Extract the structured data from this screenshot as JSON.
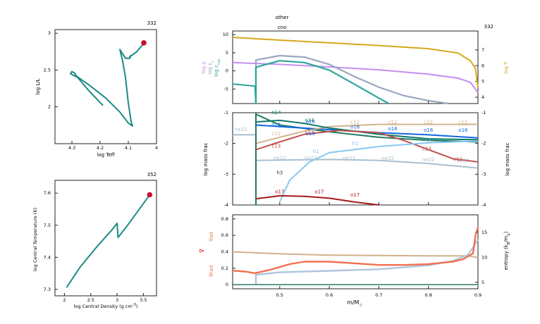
{
  "colors": {
    "track": "#1a8a86",
    "marker": "#c8102e",
    "logRho": "#c58ef0",
    "logSnu": "#9aa7bf",
    "logEpsNuc": "#2ba79b",
    "logT": "#d7a81a",
    "he4": "#1e7a62",
    "o16": "#1467e0",
    "c12": "#d2b48c",
    "ne22": "#a9bfd0",
    "n14": "#0e7a6a",
    "c13": "#c0504d",
    "h1": "#86c9ef",
    "o17": "#a51919",
    "gradAd": "#d1b08a",
    "gradRad": "#f07050",
    "entropy": "#b0c4de"
  },
  "hr": {
    "model": "332",
    "xlabel": "log Teff",
    "ylabel": "log L/L",
    "xticks": [
      "4.3",
      "4.2",
      "4.1",
      "4"
    ],
    "yticks": [
      "3",
      "2.5",
      "2"
    ],
    "xlim": [
      4.36,
      4.0
    ],
    "ylim": [
      1.5,
      3.05
    ],
    "track": [
      [
        4.19,
        2.02
      ],
      [
        4.24,
        2.22
      ],
      [
        4.28,
        2.4
      ],
      [
        4.305,
        2.45
      ],
      [
        4.3,
        2.48
      ],
      [
        4.29,
        2.46
      ],
      [
        4.285,
        2.42
      ],
      [
        4.24,
        2.3
      ],
      [
        4.18,
        2.12
      ],
      [
        4.13,
        1.93
      ],
      [
        4.1,
        1.78
      ],
      [
        4.085,
        1.74
      ],
      [
        4.09,
        1.8
      ],
      [
        4.1,
        2.05
      ],
      [
        4.11,
        2.4
      ],
      [
        4.12,
        2.62
      ],
      [
        4.13,
        2.78
      ],
      [
        4.11,
        2.66
      ],
      [
        4.095,
        2.66
      ],
      [
        4.09,
        2.7
      ],
      [
        4.095,
        2.68
      ],
      [
        4.07,
        2.75
      ],
      [
        4.05,
        2.84
      ],
      [
        4.045,
        2.87
      ]
    ],
    "point": [
      4.045,
      2.87
    ]
  },
  "rho": {
    "model": "352",
    "xlabel": "log Central Density (g cm",
    "ylabel": "log Central Temperature (K)",
    "xticks": [
      "2",
      "2.5",
      "3",
      "3.5"
    ],
    "yticks": [
      "7.6",
      "7.5",
      "7.4",
      "7.3"
    ],
    "xlim": [
      1.82,
      3.75
    ],
    "ylim": [
      7.28,
      7.64
    ],
    "track": [
      [
        2.04,
        7.306
      ],
      [
        2.3,
        7.37
      ],
      [
        2.6,
        7.43
      ],
      [
        2.9,
        7.485
      ],
      [
        3.0,
        7.506
      ],
      [
        3.02,
        7.462
      ],
      [
        3.2,
        7.5
      ],
      [
        3.4,
        7.545
      ],
      [
        3.6,
        7.59
      ],
      [
        3.62,
        7.595
      ]
    ],
    "point": [
      3.62,
      7.595
    ]
  },
  "profile": {
    "model": "332",
    "top_labels": [
      "other",
      "cno"
    ],
    "xlabel": "m/M",
    "xticks": [
      "0.5",
      "0.6",
      "0.7",
      "0.8",
      "0.9"
    ],
    "xlim": [
      0.405,
      0.9
    ],
    "panel1": {
      "ylim": [
        -9,
        11
      ],
      "yticks": [
        "10",
        "5",
        "0",
        "-5"
      ],
      "y2lim": [
        3.6,
        8.2
      ],
      "y2ticks": [
        "7",
        "6",
        "5",
        "4"
      ],
      "ylabels": [
        "log ρ",
        "log ε",
        "log ε"
      ],
      "y2label": "log T",
      "series": {
        "logT": [
          [
            0.405,
            7.8
          ],
          [
            0.5,
            7.62
          ],
          [
            0.6,
            7.45
          ],
          [
            0.7,
            7.28
          ],
          [
            0.8,
            7.08
          ],
          [
            0.86,
            6.8
          ],
          [
            0.885,
            6.3
          ],
          [
            0.895,
            5.8
          ],
          [
            0.9,
            4.6
          ]
        ],
        "logRho": [
          [
            0.405,
            2.3
          ],
          [
            0.5,
            1.8
          ],
          [
            0.6,
            1.1
          ],
          [
            0.7,
            0.3
          ],
          [
            0.8,
            -0.9
          ],
          [
            0.86,
            -2.0
          ],
          [
            0.885,
            -3.2
          ],
          [
            0.9,
            -6.0
          ]
        ],
        "logSnu": [
          [
            0.452,
            -9
          ],
          [
            0.452,
            3.0
          ],
          [
            0.5,
            4.2
          ],
          [
            0.55,
            3.8
          ],
          [
            0.6,
            1.8
          ],
          [
            0.65,
            -1.5
          ],
          [
            0.7,
            -4.5
          ],
          [
            0.75,
            -6.8
          ],
          [
            0.8,
            -8.2
          ],
          [
            0.84,
            -9
          ]
        ],
        "logEpsNuc_left": [
          [
            0.405,
            -3.6
          ],
          [
            0.45,
            -4.2
          ],
          [
            0.452,
            -9
          ]
        ],
        "logEpsNuc": [
          [
            0.452,
            -9
          ],
          [
            0.452,
            1.0
          ],
          [
            0.5,
            2.8
          ],
          [
            0.55,
            2.3
          ],
          [
            0.6,
            0.2
          ],
          [
            0.65,
            -3.6
          ],
          [
            0.7,
            -7.5
          ],
          [
            0.72,
            -9
          ]
        ]
      }
    },
    "panel2": {
      "ylim": [
        -4,
        -1
      ],
      "yticks": [
        "-1",
        "-2",
        "-3",
        "-4"
      ],
      "ylabel": "log mass frac",
      "series": [
        {
          "name": "he4",
          "pts": [
            [
              0.452,
              -1.05
            ],
            [
              0.5,
              -1.4
            ],
            [
              0.6,
              -1.62
            ],
            [
              0.7,
              -1.8
            ],
            [
              0.8,
              -1.9
            ],
            [
              0.9,
              -1.95
            ]
          ]
        },
        {
          "name": "o16",
          "pts": [
            [
              0.452,
              -1.0
            ],
            [
              0.452,
              -1.4
            ],
            [
              0.5,
              -1.45
            ],
            [
              0.6,
              -1.55
            ],
            [
              0.7,
              -1.65
            ],
            [
              0.8,
              -1.72
            ],
            [
              0.9,
              -1.82
            ]
          ]
        },
        {
          "name": "c12",
          "pts": [
            [
              0.452,
              -2.0
            ],
            [
              0.5,
              -1.8
            ],
            [
              0.55,
              -1.6
            ],
            [
              0.6,
              -1.45
            ],
            [
              0.7,
              -1.38
            ],
            [
              0.8,
              -1.38
            ],
            [
              0.9,
              -1.38
            ]
          ]
        },
        {
          "name": "n14",
          "pts": [
            [
              0.452,
              -1.3
            ],
            [
              0.5,
              -1.25
            ],
            [
              0.55,
              -1.35
            ],
            [
              0.6,
              -1.5
            ],
            [
              0.7,
              -1.7
            ],
            [
              0.8,
              -1.85
            ],
            [
              0.9,
              -1.88
            ]
          ]
        },
        {
          "name": "c13",
          "pts": [
            [
              0.452,
              -2.2
            ],
            [
              0.5,
              -1.95
            ],
            [
              0.55,
              -1.7
            ],
            [
              0.62,
              -1.58
            ],
            [
              0.7,
              -1.65
            ],
            [
              0.75,
              -1.9
            ],
            [
              0.8,
              -2.2
            ],
            [
              0.85,
              -2.5
            ],
            [
              0.9,
              -2.6
            ]
          ]
        },
        {
          "name": "ne22",
          "pts": [
            [
              0.405,
              -1.72
            ],
            [
              0.452,
              -1.72
            ],
            [
              0.452,
              -2.55
            ],
            [
              0.6,
              -2.52
            ],
            [
              0.7,
              -2.55
            ],
            [
              0.8,
              -2.65
            ],
            [
              0.9,
              -2.8
            ]
          ]
        },
        {
          "name": "h1",
          "pts": [
            [
              0.5,
              -3.9
            ],
            [
              0.52,
              -3.2
            ],
            [
              0.56,
              -2.6
            ],
            [
              0.6,
              -2.3
            ],
            [
              0.7,
              -2.1
            ],
            [
              0.8,
              -1.98
            ],
            [
              0.9,
              -1.92
            ]
          ]
        },
        {
          "name": "o17",
          "pts": [
            [
              0.452,
              -3.8
            ],
            [
              0.5,
              -3.7
            ],
            [
              0.55,
              -3.72
            ],
            [
              0.6,
              -3.78
            ],
            [
              0.65,
              -3.9
            ],
            [
              0.7,
              -4.0
            ]
          ]
        }
      ],
      "labels": [
        [
          "n14",
          0.493,
          -1.05
        ],
        [
          "o16",
          0.562,
          -1.34
        ],
        [
          "n14",
          0.56,
          -1.3
        ],
        [
          "c12",
          0.652,
          -1.36
        ],
        [
          "c12",
          0.728,
          -1.36
        ],
        [
          "c12",
          0.8,
          -1.36
        ],
        [
          "c12",
          0.87,
          -1.36
        ],
        [
          "o16",
          0.493,
          -1.43
        ],
        [
          "c12",
          0.493,
          -1.73
        ],
        [
          "c13",
          0.493,
          -2.13
        ],
        [
          "c13",
          0.56,
          -1.68
        ],
        [
          "o16",
          0.562,
          -1.73
        ],
        [
          "o16",
          0.652,
          -1.52
        ],
        [
          "o16",
          0.728,
          -1.57
        ],
        [
          "o16",
          0.8,
          -1.62
        ],
        [
          "o16",
          0.87,
          -1.62
        ],
        [
          "ne22",
          0.422,
          -1.6
        ],
        [
          "ne22",
          0.5,
          -2.52
        ],
        [
          "ne22",
          0.562,
          -2.52
        ],
        [
          "ne22",
          0.64,
          -2.53
        ],
        [
          "ne22",
          0.718,
          -2.53
        ],
        [
          "ne22",
          0.8,
          -2.58
        ],
        [
          "ne22",
          0.87,
          -2.62
        ],
        [
          "h1",
          0.573,
          -2.3
        ],
        [
          "h1",
          0.652,
          -2.05
        ],
        [
          "h1",
          0.8,
          -2.0
        ],
        [
          "h3",
          0.5,
          -3.0
        ],
        [
          "c13",
          0.797,
          -2.22
        ],
        [
          "c13",
          0.86,
          -2.57
        ],
        [
          "o17",
          0.5,
          -3.62
        ],
        [
          "o17",
          0.58,
          -3.62
        ],
        [
          "o17",
          0.652,
          -3.72
        ]
      ]
    },
    "panel3": {
      "ylim": [
        -0.05,
        0.85
      ],
      "yticks": [
        "0.8",
        "0.6",
        "0.4",
        "0.2",
        "0"
      ],
      "y2lim": [
        3.7,
        18.5
      ],
      "y2ticks": [
        "15",
        "10",
        "5"
      ],
      "ylabels": [
        "∇ad",
        "∇",
        "∇rad"
      ],
      "y2label": "entropy (k",
      "series": {
        "gradAd": [
          [
            0.405,
            0.4
          ],
          [
            0.5,
            0.375
          ],
          [
            0.6,
            0.36
          ],
          [
            0.7,
            0.355
          ],
          [
            0.8,
            0.35
          ],
          [
            0.88,
            0.35
          ],
          [
            0.9,
            0.33
          ]
        ],
        "gradRad": [
          [
            0.405,
            0.17
          ],
          [
            0.43,
            0.16
          ],
          [
            0.45,
            0.14
          ],
          [
            0.48,
            0.18
          ],
          [
            0.52,
            0.25
          ],
          [
            0.55,
            0.28
          ],
          [
            0.6,
            0.28
          ],
          [
            0.65,
            0.26
          ],
          [
            0.7,
            0.24
          ],
          [
            0.75,
            0.24
          ],
          [
            0.8,
            0.25
          ],
          [
            0.85,
            0.28
          ],
          [
            0.87,
            0.31
          ],
          [
            0.89,
            0.38
          ],
          [
            0.895,
            0.6
          ],
          [
            0.9,
            0.7
          ]
        ],
        "entropy": [
          [
            0.452,
            4.5
          ],
          [
            0.452,
            6.5
          ],
          [
            0.5,
            7.0
          ],
          [
            0.6,
            7.3
          ],
          [
            0.7,
            7.6
          ],
          [
            0.8,
            8.4
          ],
          [
            0.85,
            9.3
          ],
          [
            0.88,
            10.5
          ],
          [
            0.9,
            13.5
          ]
        ]
      }
    }
  }
}
